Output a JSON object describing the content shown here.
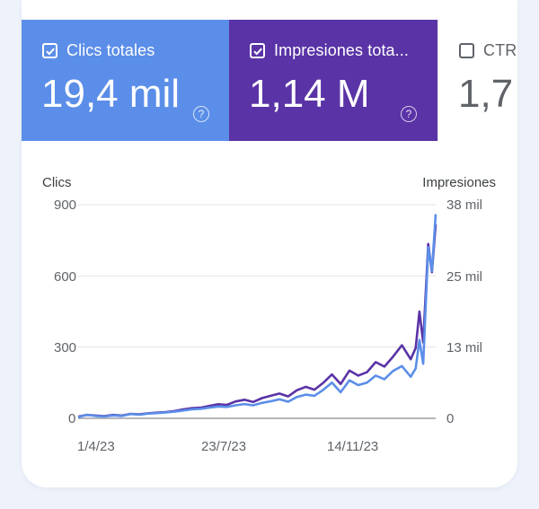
{
  "tiles": {
    "clicks": {
      "label": "Clics totales",
      "value": "19,4 mil",
      "checked": true,
      "help": "?"
    },
    "impressions": {
      "label": "Impresiones tota...",
      "value": "1,14 M",
      "checked": true,
      "help": "?"
    },
    "ctr": {
      "label": "CTR",
      "value": "1,7",
      "checked": false
    }
  },
  "colors": {
    "clicks": "#5b8ee8",
    "impressions": "#5a33a6",
    "ctr_text": "#5f6368"
  },
  "chart_data": {
    "type": "line",
    "title": "",
    "left_axis": {
      "label": "Clics",
      "ticks": [
        "900",
        "600",
        "300",
        "0"
      ],
      "ylim": [
        0,
        900
      ]
    },
    "right_axis": {
      "label": "Impresiones",
      "ticks": [
        "38 mil",
        "25 mil",
        "13 mil",
        "0"
      ],
      "ylim": [
        0,
        38000
      ]
    },
    "x_ticks": [
      "1/4/23",
      "23/7/23",
      "14/11/23"
    ],
    "x_range": [
      "2023-03-27",
      "2024-01-07"
    ],
    "grid": true,
    "series": [
      {
        "name": "Impresiones",
        "axis": "right",
        "color": "#5a33a6",
        "x": [
          "2023-03-27",
          "2023-04-03",
          "2023-04-10",
          "2023-04-17",
          "2023-04-24",
          "2023-05-01",
          "2023-05-08",
          "2023-05-15",
          "2023-05-22",
          "2023-05-29",
          "2023-06-05",
          "2023-06-12",
          "2023-06-19",
          "2023-06-26",
          "2023-07-03",
          "2023-07-10",
          "2023-07-17",
          "2023-07-24",
          "2023-07-31",
          "2023-08-07",
          "2023-08-14",
          "2023-08-21",
          "2023-08-28",
          "2023-09-04",
          "2023-09-11",
          "2023-09-18",
          "2023-09-25",
          "2023-10-02",
          "2023-10-09",
          "2023-10-16",
          "2023-10-23",
          "2023-10-30",
          "2023-11-06",
          "2023-11-13",
          "2023-11-20",
          "2023-11-27",
          "2023-12-04",
          "2023-12-11",
          "2023-12-18",
          "2023-12-22",
          "2023-12-25",
          "2023-12-28",
          "2024-01-01",
          "2024-01-04",
          "2024-01-07"
        ],
        "y": [
          300,
          600,
          500,
          400,
          600,
          500,
          800,
          700,
          900,
          1000,
          1100,
          1300,
          1600,
          1800,
          1900,
          2200,
          2500,
          2400,
          3000,
          3300,
          2900,
          3600,
          4000,
          4400,
          3900,
          5000,
          5600,
          5100,
          6300,
          7800,
          6100,
          8500,
          7600,
          8200,
          10000,
          9200,
          11000,
          13000,
          10500,
          12500,
          19000,
          13500,
          31000,
          26000,
          34500
        ]
      },
      {
        "name": "Clics",
        "axis": "left",
        "color": "#5b8ee8",
        "x": [
          "2023-03-27",
          "2023-04-03",
          "2023-04-10",
          "2023-04-17",
          "2023-04-24",
          "2023-05-01",
          "2023-05-08",
          "2023-05-15",
          "2023-05-22",
          "2023-05-29",
          "2023-06-05",
          "2023-06-12",
          "2023-06-19",
          "2023-06-26",
          "2023-07-03",
          "2023-07-10",
          "2023-07-17",
          "2023-07-24",
          "2023-07-31",
          "2023-08-07",
          "2023-08-14",
          "2023-08-21",
          "2023-08-28",
          "2023-09-04",
          "2023-09-11",
          "2023-09-18",
          "2023-09-25",
          "2023-10-02",
          "2023-10-09",
          "2023-10-16",
          "2023-10-23",
          "2023-10-30",
          "2023-11-06",
          "2023-11-13",
          "2023-11-20",
          "2023-11-27",
          "2023-12-04",
          "2023-12-11",
          "2023-12-18",
          "2023-12-22",
          "2023-12-25",
          "2023-12-28",
          "2024-01-01",
          "2024-01-04",
          "2024-01-07"
        ],
        "y": [
          5,
          15,
          10,
          8,
          12,
          10,
          18,
          15,
          20,
          22,
          25,
          28,
          33,
          38,
          40,
          45,
          50,
          48,
          55,
          60,
          55,
          65,
          72,
          80,
          70,
          90,
          100,
          95,
          120,
          150,
          110,
          160,
          140,
          150,
          180,
          165,
          200,
          220,
          175,
          210,
          330,
          230,
          720,
          620,
          860
        ]
      }
    ]
  }
}
